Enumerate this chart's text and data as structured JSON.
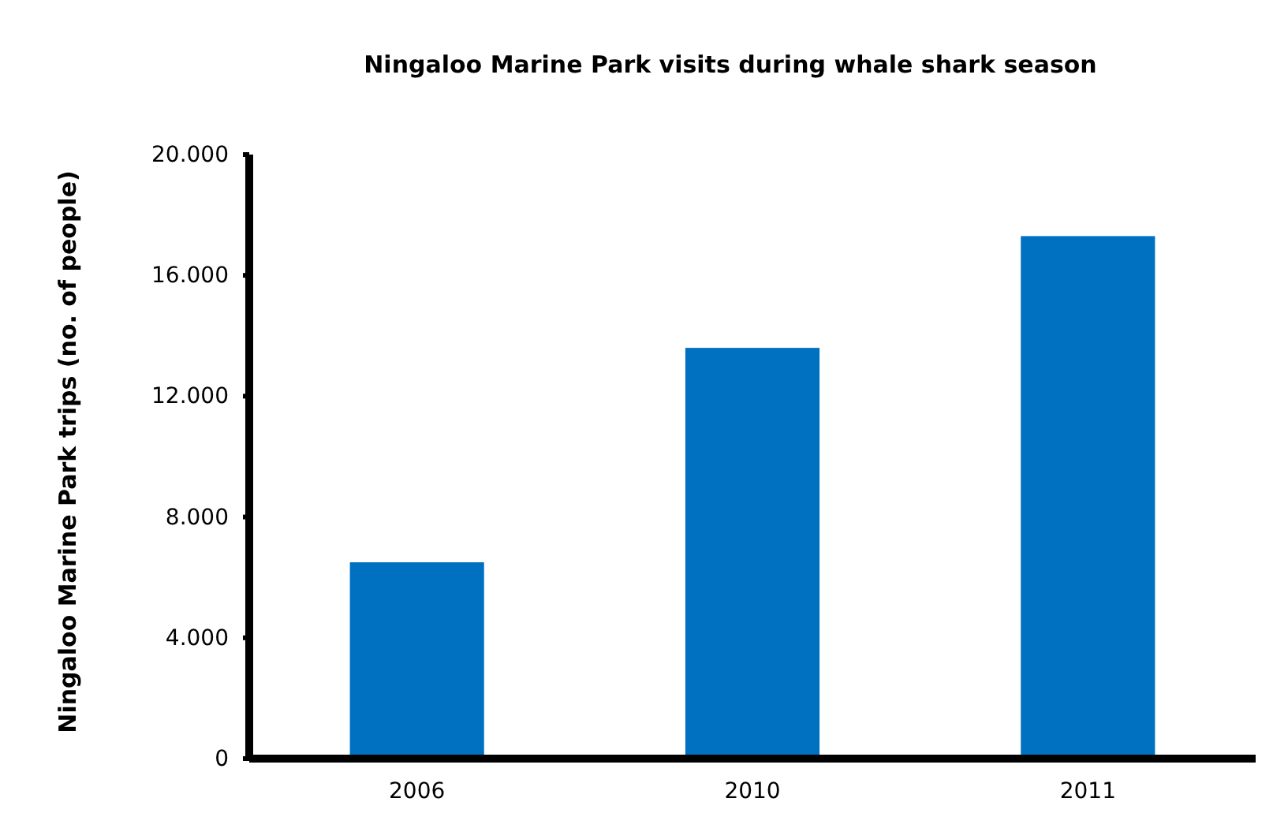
{
  "chart_data": {
    "type": "bar",
    "title": "Ningaloo Marine Park visits during whale shark season",
    "ylabel": "Ningaloo Marine Park trips (no. of people)",
    "categories": [
      "2006",
      "2010",
      "2011"
    ],
    "values": [
      6500,
      13600,
      17300
    ],
    "color": "#0070c0",
    "ylim": [
      0,
      20000
    ],
    "yticks": [
      {
        "value": 0,
        "label": "0"
      },
      {
        "value": 4000,
        "label": "4.000"
      },
      {
        "value": 8000,
        "label": "8.000"
      },
      {
        "value": 12000,
        "label": "12.000"
      },
      {
        "value": 16000,
        "label": "16.000"
      },
      {
        "value": 20000,
        "label": "20.000"
      }
    ],
    "grid": false
  }
}
